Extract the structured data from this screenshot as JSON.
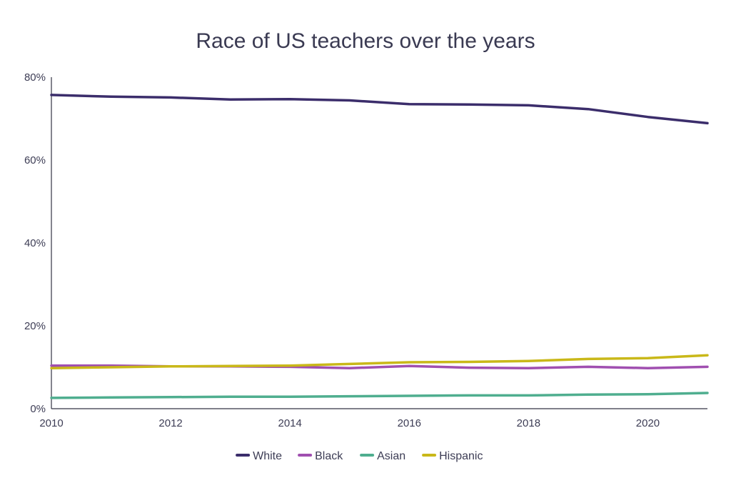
{
  "chart_data": {
    "type": "line",
    "title": "Race of US teachers over the years",
    "xlabel": "",
    "ylabel": "",
    "x": [
      2010,
      2011,
      2012,
      2013,
      2014,
      2015,
      2016,
      2017,
      2018,
      2019,
      2020,
      2021
    ],
    "xlim": [
      2010,
      2021
    ],
    "ylim": [
      0,
      80
    ],
    "x_ticks": [
      {
        "value": 2010,
        "label": "2010"
      },
      {
        "value": 2012,
        "label": "2012"
      },
      {
        "value": 2014,
        "label": "2014"
      },
      {
        "value": 2016,
        "label": "2016"
      },
      {
        "value": 2018,
        "label": "2018"
      },
      {
        "value": 2020,
        "label": "2020"
      }
    ],
    "y_ticks": [
      {
        "value": 0,
        "label": "0%"
      },
      {
        "value": 20,
        "label": "20%"
      },
      {
        "value": 40,
        "label": "40%"
      },
      {
        "value": 60,
        "label": "60%"
      },
      {
        "value": 80,
        "label": "80%"
      }
    ],
    "grid": false,
    "legend_position": "bottom",
    "series": [
      {
        "name": "White",
        "color": "#3b2d6b",
        "values": [
          75.7,
          75.3,
          75.1,
          74.6,
          74.7,
          74.4,
          73.5,
          73.4,
          73.2,
          72.3,
          70.4,
          68.9
        ]
      },
      {
        "name": "Black",
        "color": "#a04fb0",
        "values": [
          10.4,
          10.4,
          10.2,
          10.2,
          10.1,
          9.8,
          10.3,
          9.9,
          9.8,
          10.1,
          9.8,
          10.1
        ]
      },
      {
        "name": "Asian",
        "color": "#4fae8f",
        "values": [
          2.6,
          2.7,
          2.8,
          2.9,
          2.9,
          3.0,
          3.1,
          3.2,
          3.2,
          3.4,
          3.5,
          3.8
        ]
      },
      {
        "name": "Hispanic",
        "color": "#c9b819",
        "values": [
          9.8,
          10.0,
          10.2,
          10.3,
          10.4,
          10.8,
          11.2,
          11.3,
          11.5,
          12.0,
          12.2,
          12.9
        ]
      }
    ]
  }
}
